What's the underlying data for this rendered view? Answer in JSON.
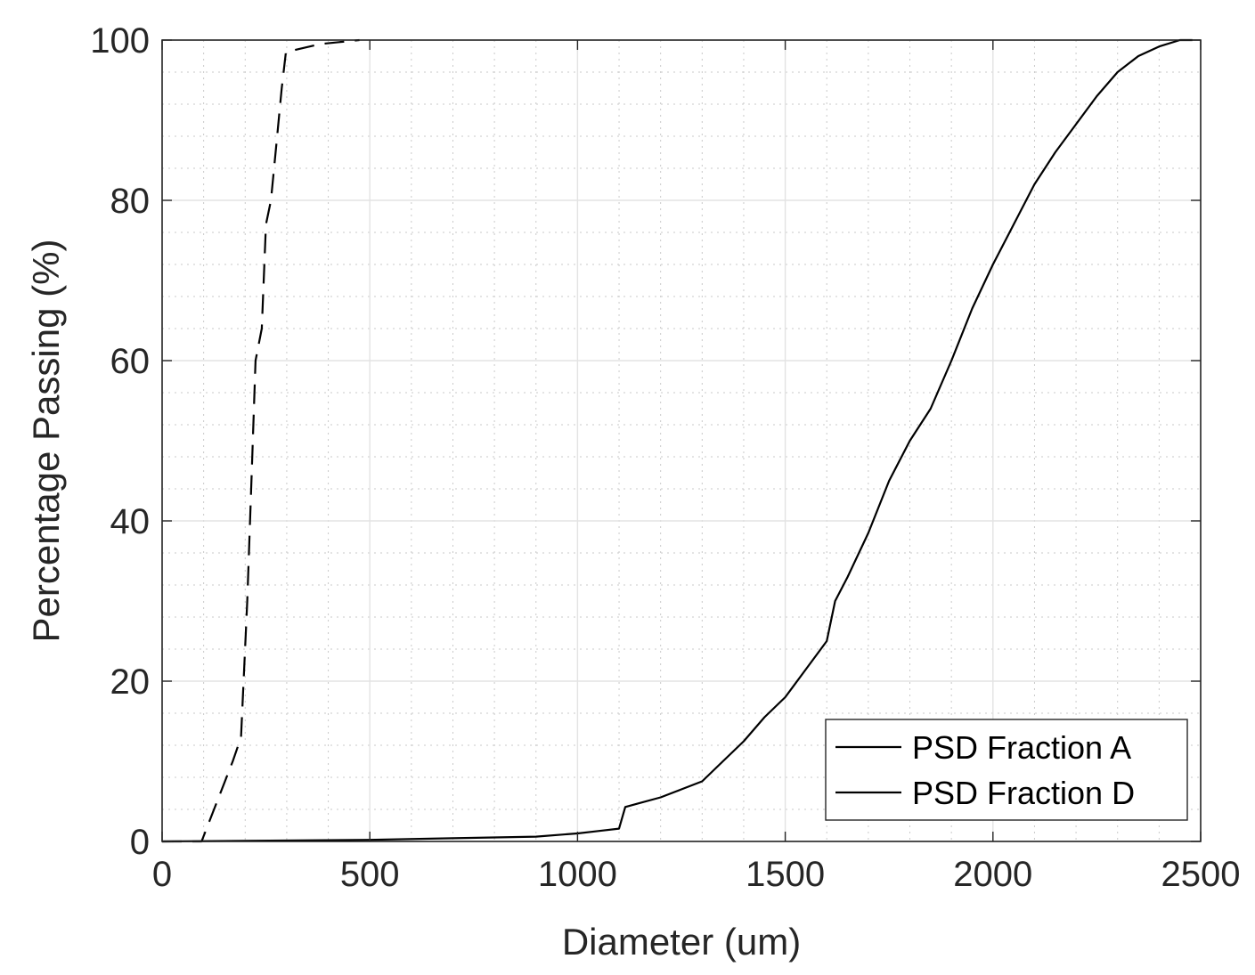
{
  "chart_data": {
    "type": "line",
    "xlabel": "Diameter (um)",
    "ylabel": "Percentage Passing (%)",
    "xlim": [
      0,
      2500
    ],
    "ylim": [
      0,
      100
    ],
    "xticks": [
      0,
      500,
      1000,
      1500,
      2000,
      2500
    ],
    "yticks": [
      0,
      20,
      40,
      60,
      80,
      100
    ],
    "grid": true,
    "minor_grid": true,
    "legend_position": "bottom-right",
    "series": [
      {
        "name": "PSD Fraction A",
        "line_style": "dashed",
        "color": "#000000",
        "x": [
          0,
          95,
          110,
          170,
          190,
          205,
          215,
          225,
          240,
          250,
          262,
          275,
          288,
          298,
          380,
          475
        ],
        "y": [
          0,
          0,
          2,
          10,
          13,
          30,
          45,
          60,
          64,
          77,
          80,
          87,
          94,
          98.5,
          99.5,
          100
        ]
      },
      {
        "name": "PSD Fraction D",
        "line_style": "solid",
        "color": "#000000",
        "x": [
          0,
          500,
          700,
          900,
          1000,
          1050,
          1100,
          1115,
          1150,
          1200,
          1250,
          1300,
          1350,
          1400,
          1450,
          1500,
          1550,
          1600,
          1620,
          1650,
          1700,
          1750,
          1800,
          1850,
          1900,
          1950,
          2000,
          2050,
          2100,
          2150,
          2200,
          2250,
          2300,
          2350,
          2400,
          2450,
          2480
        ],
        "y": [
          0,
          0.2,
          0.4,
          0.6,
          1,
          1.3,
          1.6,
          4.3,
          4.8,
          5.5,
          6.5,
          7.5,
          10,
          12.5,
          15.5,
          18,
          21.5,
          25,
          30,
          33,
          38.5,
          45,
          50,
          54,
          60,
          66.5,
          72,
          77,
          82,
          86,
          89.5,
          93,
          96,
          98,
          99.2,
          100,
          100
        ]
      }
    ]
  }
}
